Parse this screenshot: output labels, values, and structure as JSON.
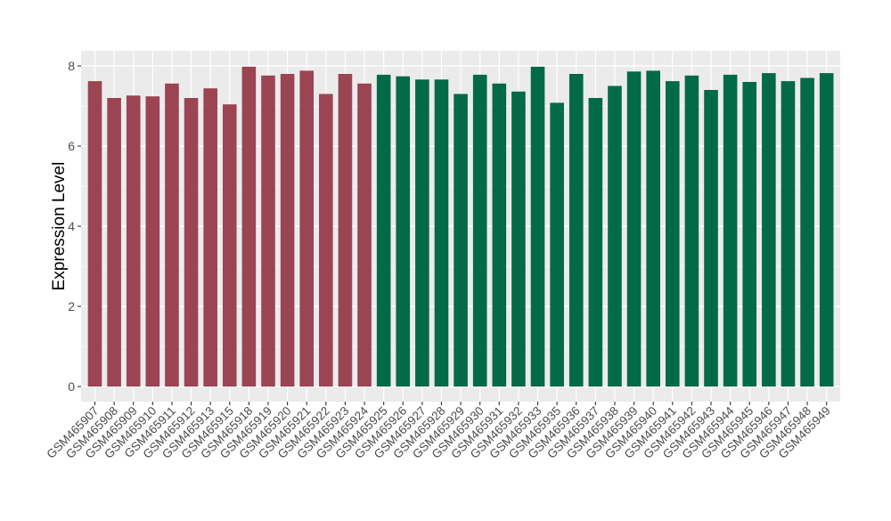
{
  "chart_data": {
    "type": "bar",
    "title": "",
    "xlabel": "",
    "ylabel": "Expression Level",
    "ylim": [
      0,
      8.2
    ],
    "yticks": [
      0,
      2,
      4,
      6,
      8
    ],
    "grid": true,
    "legend": "none",
    "colors": {
      "group_a": "#9B4452",
      "group_b": "#036A47",
      "panel": "#EBEBEB",
      "gridline": "#FFFFFF"
    },
    "categories": [
      "GSM465907",
      "GSM465908",
      "GSM465909",
      "GSM465910",
      "GSM465911",
      "GSM465912",
      "GSM465913",
      "GSM465915",
      "GSM465918",
      "GSM465919",
      "GSM465920",
      "GSM465921",
      "GSM465922",
      "GSM465923",
      "GSM465924",
      "GSM465925",
      "GSM465926",
      "GSM465927",
      "GSM465928",
      "GSM465929",
      "GSM465930",
      "GSM465931",
      "GSM465932",
      "GSM465933",
      "GSM465935",
      "GSM465936",
      "GSM465937",
      "GSM465938",
      "GSM465939",
      "GSM465940",
      "GSM465941",
      "GSM465942",
      "GSM465943",
      "GSM465944",
      "GSM465945",
      "GSM465946",
      "GSM465947",
      "GSM465948",
      "GSM465949"
    ],
    "values": [
      7.62,
      7.2,
      7.26,
      7.24,
      7.56,
      7.2,
      7.44,
      7.04,
      7.98,
      7.76,
      7.8,
      7.88,
      7.3,
      7.8,
      7.56,
      7.78,
      7.74,
      7.66,
      7.66,
      7.3,
      7.78,
      7.56,
      7.36,
      7.98,
      7.08,
      7.8,
      7.2,
      7.5,
      7.86,
      7.88,
      7.62,
      7.76,
      7.4,
      7.78,
      7.6,
      7.82,
      7.62,
      7.7,
      7.82
    ],
    "groups": [
      "a",
      "a",
      "a",
      "a",
      "a",
      "a",
      "a",
      "a",
      "a",
      "a",
      "a",
      "a",
      "a",
      "a",
      "a",
      "b",
      "b",
      "b",
      "b",
      "b",
      "b",
      "b",
      "b",
      "b",
      "b",
      "b",
      "b",
      "b",
      "b",
      "b",
      "b",
      "b",
      "b",
      "b",
      "b",
      "b",
      "b",
      "b",
      "b"
    ]
  }
}
